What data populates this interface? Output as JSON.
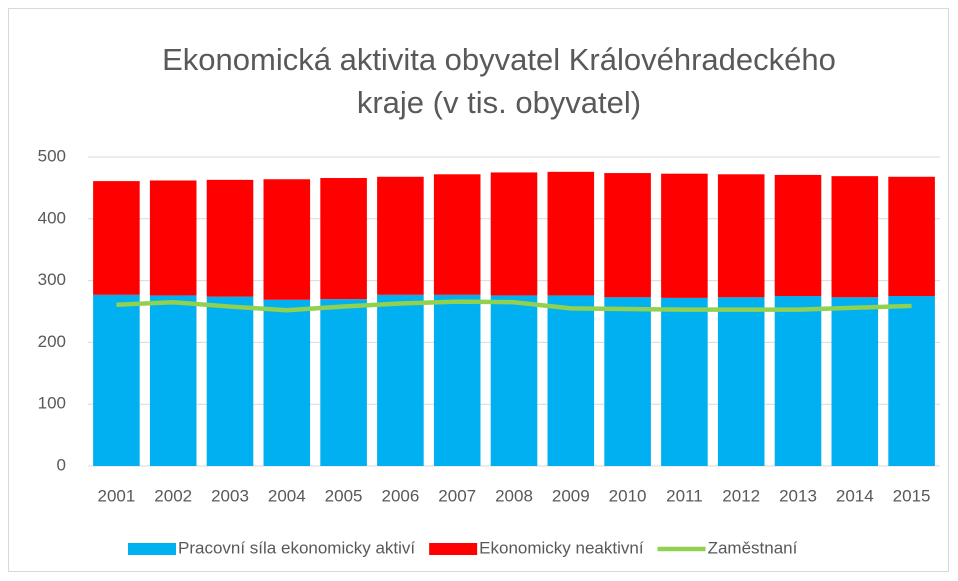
{
  "chart_data": {
    "type": "bar",
    "stacked": true,
    "title": "Ekonomická aktivita obyvatel Královéhradeckého kraje (v tis. obyvatel)",
    "categories": [
      "2001",
      "2002",
      "2003",
      "2004",
      "2005",
      "2006",
      "2007",
      "2008",
      "2009",
      "2010",
      "2011",
      "2012",
      "2013",
      "2014",
      "2015"
    ],
    "series": [
      {
        "name": "Pracovní síla ekonomicky aktiví",
        "color": "#00b0f0",
        "kind": "bar",
        "values": [
          277,
          276,
          274,
          269,
          270,
          277,
          277,
          276,
          276,
          273,
          272,
          273,
          275,
          273,
          275
        ]
      },
      {
        "name": "Ekonomicky neaktivní",
        "color": "#ff0000",
        "kind": "bar",
        "values": [
          184,
          186,
          189,
          195,
          196,
          191,
          195,
          199,
          200,
          201,
          201,
          199,
          196,
          196,
          193
        ]
      },
      {
        "name": "Zaměstnaní",
        "color": "#92d050",
        "kind": "line",
        "values": [
          261,
          265,
          258,
          252,
          258,
          263,
          266,
          265,
          255,
          254,
          253,
          253,
          253,
          256,
          259
        ]
      }
    ],
    "ylim": [
      0,
      500
    ],
    "yticks": [
      0,
      100,
      200,
      300,
      400,
      500
    ],
    "grid": true,
    "legend": "bottom"
  }
}
